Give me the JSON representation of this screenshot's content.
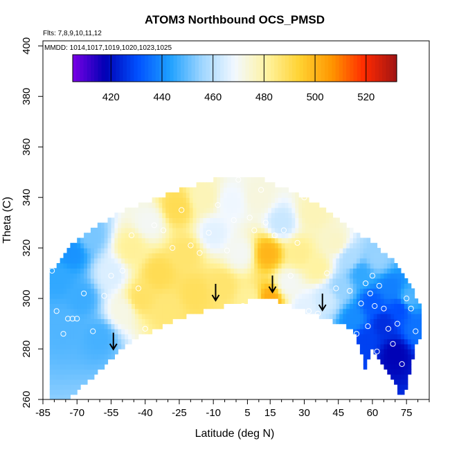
{
  "chart_data": {
    "type": "heatmap",
    "title": "ATOM3 Northbound OCS_PMSD",
    "flights_note": "Flts: 7,8,9,10,11,12",
    "dates_note": "MMDD: 1014,1017,1019,1020,1023,1025",
    "xlabel": "Latitude (deg N)",
    "ylabel": "Theta (C)",
    "xlim": [
      -85,
      85
    ],
    "ylim": [
      260,
      402
    ],
    "x_ticks": [
      -85,
      -70,
      -55,
      -40,
      -25,
      -10,
      5,
      15,
      30,
      45,
      60,
      75
    ],
    "x_tick_labels": [
      "-85",
      "-70",
      "-55",
      "-40",
      "-25",
      "-10",
      "5",
      "15",
      "30",
      "45",
      "60",
      "75"
    ],
    "y_ticks": [
      260,
      280,
      300,
      320,
      340,
      360,
      380,
      400
    ],
    "y_tick_labels": [
      "260",
      "280",
      "300",
      "320",
      "340",
      "360",
      "380",
      "400"
    ],
    "colorbar": {
      "range": [
        405,
        532
      ],
      "ticks": [
        420,
        440,
        460,
        480,
        500,
        520
      ],
      "tick_labels": [
        "420",
        "440",
        "460",
        "480",
        "500",
        "520"
      ],
      "colors": [
        "#7a00e6",
        "#0000b4",
        "#0050ff",
        "#1ea0ff",
        "#9fd6ff",
        "#f2f8ff",
        "#fff3a0",
        "#ffd232",
        "#ff9600",
        "#ff2a00",
        "#a01414"
      ]
    },
    "arrows_latitude": [
      -54,
      -9,
      16,
      38
    ],
    "lower_boundary": [
      [
        -73,
        261
      ],
      [
        -69,
        264
      ],
      [
        -63,
        269
      ],
      [
        -55,
        276
      ],
      [
        -48,
        282
      ],
      [
        -43,
        285
      ],
      [
        -35,
        288
      ],
      [
        -25,
        292
      ],
      [
        -15,
        295
      ],
      [
        -5,
        297
      ],
      [
        5,
        299
      ],
      [
        14,
        300
      ],
      [
        22,
        298
      ],
      [
        30,
        295
      ],
      [
        36,
        293
      ],
      [
        42,
        291
      ],
      [
        48,
        289
      ],
      [
        52,
        287
      ],
      [
        55,
        279
      ],
      [
        57,
        271
      ],
      [
        59,
        280
      ],
      [
        62,
        278
      ],
      [
        66,
        272
      ],
      [
        70,
        267
      ],
      [
        72,
        262
      ],
      [
        74,
        261
      ],
      [
        80,
        284
      ]
    ],
    "upper_boundary": [
      [
        -80,
        312
      ],
      [
        -76,
        318
      ],
      [
        -70,
        323
      ],
      [
        -62,
        328
      ],
      [
        -52,
        334
      ],
      [
        -40,
        338
      ],
      [
        -25,
        343
      ],
      [
        -10,
        347
      ],
      [
        0,
        349
      ],
      [
        10,
        348
      ],
      [
        20,
        344
      ],
      [
        30,
        340
      ],
      [
        40,
        335
      ],
      [
        50,
        328
      ],
      [
        60,
        322
      ],
      [
        70,
        314
      ],
      [
        77,
        305
      ],
      [
        82,
        295
      ]
    ],
    "samples": [
      {
        "lat": -78,
        "theta": 308,
        "value": 445
      },
      {
        "lat": -75,
        "theta": 290,
        "value": 448
      },
      {
        "lat": -72,
        "theta": 318,
        "value": 441
      },
      {
        "lat": -68,
        "theta": 300,
        "value": 446
      },
      {
        "lat": -64,
        "theta": 325,
        "value": 452
      },
      {
        "lat": -60,
        "theta": 285,
        "value": 447
      },
      {
        "lat": -55,
        "theta": 310,
        "value": 465
      },
      {
        "lat": -50,
        "theta": 295,
        "value": 472
      },
      {
        "lat": -46,
        "theta": 320,
        "value": 482
      },
      {
        "lat": -42,
        "theta": 300,
        "value": 488
      },
      {
        "lat": -38,
        "theta": 330,
        "value": 470
      },
      {
        "lat": -34,
        "theta": 310,
        "value": 490
      },
      {
        "lat": -30,
        "theta": 296,
        "value": 486
      },
      {
        "lat": -26,
        "theta": 336,
        "value": 490
      },
      {
        "lat": -22,
        "theta": 318,
        "value": 487
      },
      {
        "lat": -18,
        "theta": 302,
        "value": 489
      },
      {
        "lat": -14,
        "theta": 340,
        "value": 478
      },
      {
        "lat": -10,
        "theta": 326,
        "value": 466
      },
      {
        "lat": -6,
        "theta": 305,
        "value": 487
      },
      {
        "lat": -2,
        "theta": 338,
        "value": 468
      },
      {
        "lat": 2,
        "theta": 318,
        "value": 470
      },
      {
        "lat": 6,
        "theta": 300,
        "value": 482
      },
      {
        "lat": 10,
        "theta": 340,
        "value": 473
      },
      {
        "lat": 14,
        "theta": 318,
        "value": 500
      },
      {
        "lat": 15,
        "theta": 300,
        "value": 502
      },
      {
        "lat": 20,
        "theta": 330,
        "value": 462
      },
      {
        "lat": 23,
        "theta": 306,
        "value": 470
      },
      {
        "lat": 28,
        "theta": 318,
        "value": 483
      },
      {
        "lat": 30,
        "theta": 296,
        "value": 466
      },
      {
        "lat": 34,
        "theta": 334,
        "value": 478
      },
      {
        "lat": 36,
        "theta": 312,
        "value": 481
      },
      {
        "lat": 40,
        "theta": 300,
        "value": 463
      },
      {
        "lat": 44,
        "theta": 322,
        "value": 476
      },
      {
        "lat": 46,
        "theta": 304,
        "value": 455
      },
      {
        "lat": 50,
        "theta": 316,
        "value": 458
      },
      {
        "lat": 52,
        "theta": 292,
        "value": 440
      },
      {
        "lat": 55,
        "theta": 310,
        "value": 445
      },
      {
        "lat": 57,
        "theta": 284,
        "value": 428
      },
      {
        "lat": 60,
        "theta": 298,
        "value": 432
      },
      {
        "lat": 62,
        "theta": 316,
        "value": 455
      },
      {
        "lat": 65,
        "theta": 290,
        "value": 425
      },
      {
        "lat": 68,
        "theta": 304,
        "value": 438
      },
      {
        "lat": 70,
        "theta": 278,
        "value": 418
      },
      {
        "lat": 72,
        "theta": 296,
        "value": 430
      },
      {
        "lat": 76,
        "theta": 300,
        "value": 448
      },
      {
        "lat": 80,
        "theta": 288,
        "value": 436
      }
    ],
    "observation_points": [
      [
        -81,
        311
      ],
      [
        -79,
        295
      ],
      [
        -76,
        286
      ],
      [
        -74,
        292
      ],
      [
        -72,
        292
      ],
      [
        -70,
        292
      ],
      [
        -67,
        302
      ],
      [
        -63,
        287
      ],
      [
        -58,
        301
      ],
      [
        -55,
        309
      ],
      [
        -50,
        311
      ],
      [
        -46,
        325
      ],
      [
        -43,
        304
      ],
      [
        -40,
        288
      ],
      [
        -36,
        329
      ],
      [
        -32,
        327
      ],
      [
        -28,
        320
      ],
      [
        -24,
        335
      ],
      [
        -20,
        321
      ],
      [
        -16,
        318
      ],
      [
        -12,
        326
      ],
      [
        -8,
        337
      ],
      [
        -4,
        319
      ],
      [
        -1,
        331
      ],
      [
        1,
        347
      ],
      [
        3,
        297
      ],
      [
        6,
        332
      ],
      [
        8,
        327
      ],
      [
        11,
        343
      ],
      [
        13,
        330
      ],
      [
        17,
        325
      ],
      [
        21,
        327
      ],
      [
        24,
        309
      ],
      [
        27,
        322
      ],
      [
        30,
        340
      ],
      [
        32,
        295
      ],
      [
        36,
        294
      ],
      [
        40,
        310
      ],
      [
        44,
        304
      ],
      [
        47,
        286
      ],
      [
        50,
        303
      ],
      [
        53,
        286
      ],
      [
        55,
        298
      ],
      [
        57,
        306
      ],
      [
        59,
        302
      ],
      [
        61,
        297
      ],
      [
        63,
        305
      ],
      [
        65,
        296
      ],
      [
        67,
        288
      ],
      [
        69,
        282
      ],
      [
        71,
        290
      ],
      [
        73,
        274
      ],
      [
        75,
        300
      ],
      [
        77,
        296
      ],
      [
        79,
        287
      ],
      [
        58,
        289
      ],
      [
        62,
        279
      ],
      [
        60,
        309
      ]
    ]
  }
}
